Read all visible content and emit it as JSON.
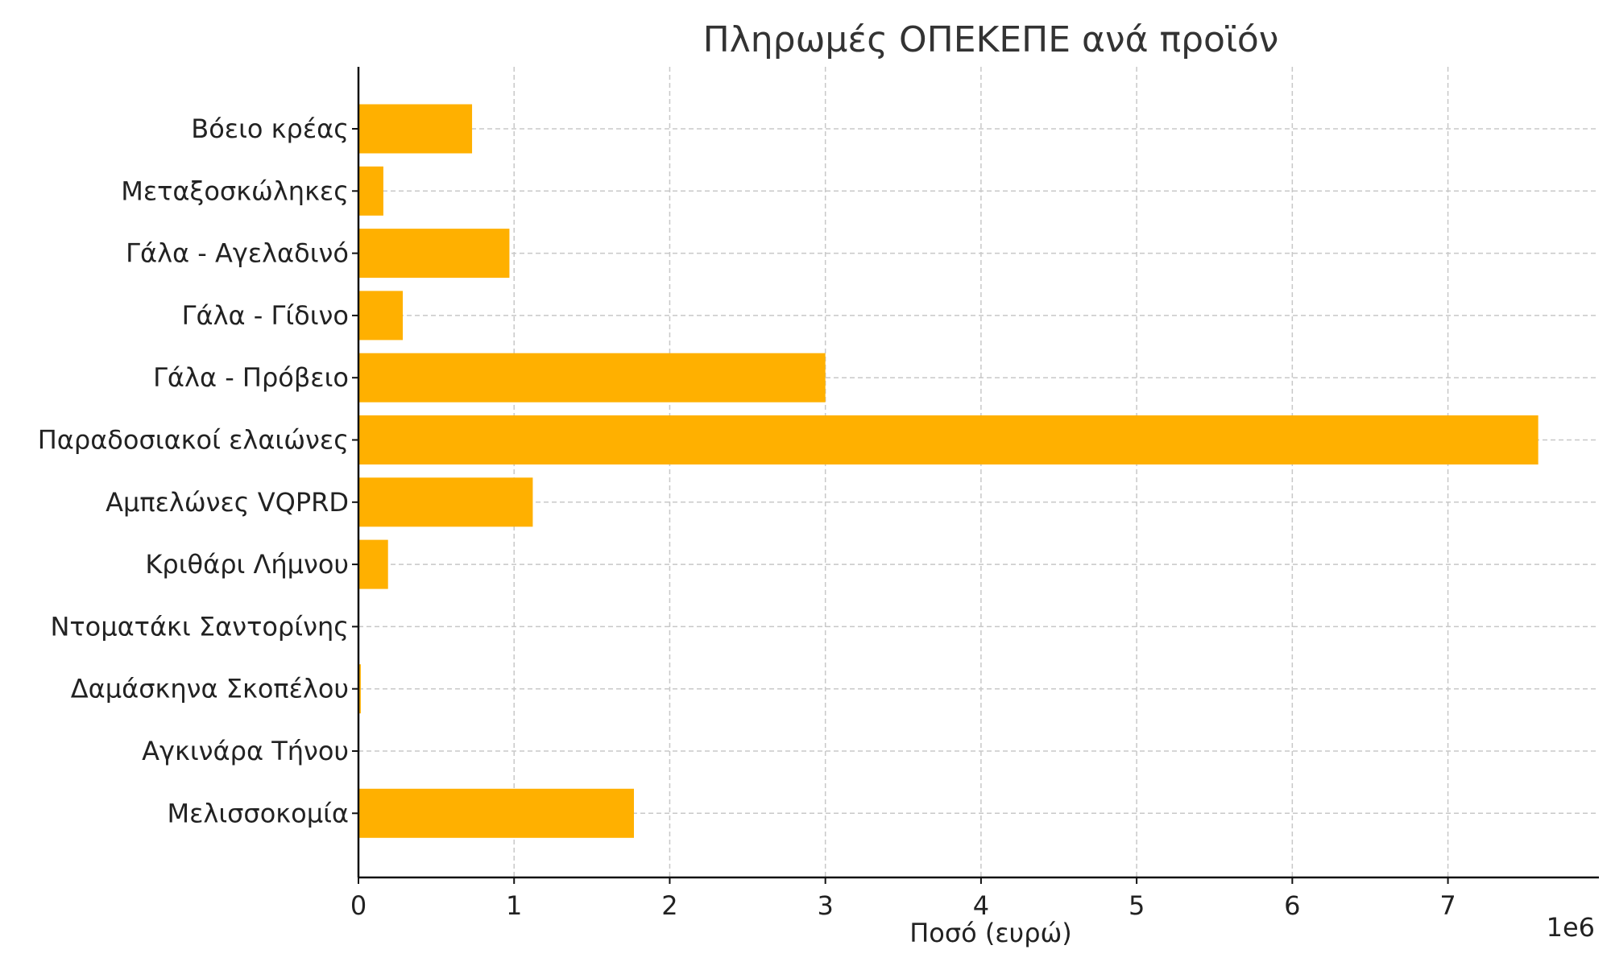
{
  "chart_data": {
    "type": "bar",
    "orientation": "horizontal",
    "title": "Πληρωμές ΟΠΕΚΕΠΕ ανά προϊόν",
    "xlabel": "Ποσό (ευρώ)",
    "ylabel": "",
    "x_scale_label": "1e6",
    "x_tick_labels": [
      "0",
      "1",
      "2",
      "3",
      "4",
      "5",
      "6",
      "7"
    ],
    "x_ticks": [
      0,
      1000000,
      2000000,
      3000000,
      4000000,
      5000000,
      6000000,
      7000000
    ],
    "xlim": [
      0,
      7970000
    ],
    "grid": true,
    "bar_color": "#FFB000",
    "categories": [
      "Βόειο κρέας",
      "Μεταξοσκώληκες",
      "Γάλα - Αγελαδινό",
      "Γάλα - Γίδινο",
      "Γάλα - Πρόβειο",
      "Παραδοσιακοί ελαιώνες",
      "Αμπελώνες VQPRD",
      "Κριθάρι Λήμνου",
      "Ντοματάκι Σαντορίνης",
      "Δαμάσκηνα Σκοπέλου",
      "Αγκινάρα Τήνου",
      "Μελισσοκομία"
    ],
    "values": [
      730000,
      160000,
      970000,
      285000,
      3000000,
      7580000,
      1120000,
      190000,
      0,
      15000,
      0,
      1770000
    ]
  }
}
